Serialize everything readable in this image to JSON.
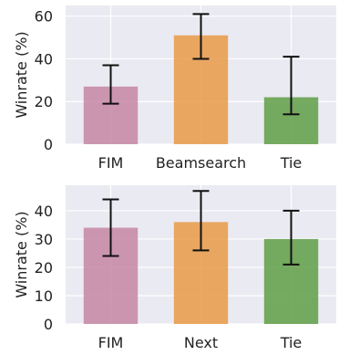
{
  "chart_data": [
    {
      "type": "bar",
      "ylabel": "Winrate (%)",
      "categories": [
        "FIM",
        "Beamsearch",
        "Tie"
      ],
      "values": [
        27,
        51,
        22
      ],
      "error_low": [
        19,
        40,
        14
      ],
      "error_high": [
        37,
        61,
        41
      ],
      "colors": [
        "#c586a5",
        "#e99a47",
        "#5f9e47"
      ],
      "ylim": [
        0,
        65
      ],
      "yticks": [
        0,
        20,
        40,
        60
      ],
      "grid": true
    },
    {
      "type": "bar",
      "ylabel": "Winrate (%)",
      "categories": [
        "FIM",
        "Next",
        "Tie"
      ],
      "values": [
        34,
        36,
        30
      ],
      "error_low": [
        24,
        26,
        21
      ],
      "error_high": [
        44,
        47,
        40
      ],
      "colors": [
        "#c586a5",
        "#e99a47",
        "#5f9e47"
      ],
      "ylim": [
        0,
        49
      ],
      "yticks": [
        0,
        10,
        20,
        30,
        40
      ],
      "grid": true
    }
  ]
}
